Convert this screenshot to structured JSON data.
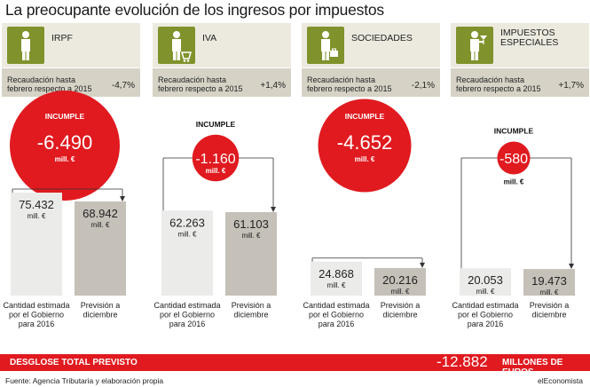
{
  "title": "La preocupante evolución de los ingresos por impuestos",
  "chart_data": {
    "type": "bar",
    "categories": [
      "Cantidad estimada por el Gobierno para 2016",
      "Previsión a diciembre"
    ],
    "value_unit": "mill. €",
    "deviation_label": "INCUMPLE",
    "subtitle": "Recaudación hasta febrero respecto a 2015",
    "panels": [
      {
        "name": "IRPF",
        "icon": "person-icon",
        "change_pct": "-4,7%",
        "estimated": 75432,
        "estimated_label": "75.432",
        "forecast": 68942,
        "forecast_label": "68.942",
        "deviation": -6490,
        "deviation_label": "-6.490"
      },
      {
        "name": "IVA",
        "icon": "shopping-cart-person-icon",
        "change_pct": "+1,4%",
        "estimated": 62263,
        "estimated_label": "62.263",
        "forecast": 61103,
        "forecast_label": "61.103",
        "deviation": -1160,
        "deviation_label": "-1.160"
      },
      {
        "name": "SOCIEDADES",
        "icon": "briefcase-person-icon",
        "change_pct": "-2,1%",
        "estimated": 24868,
        "estimated_label": "24.868",
        "forecast": 20216,
        "forecast_label": "20.216",
        "deviation": -4652,
        "deviation_label": "-4.652"
      },
      {
        "name": "IMPUESTOS ESPECIALES",
        "name_lines": [
          "IMPUESTOS",
          "ESPECIALES"
        ],
        "icon": "cocktail-person-icon",
        "change_pct": "+1,7%",
        "estimated": 20053,
        "estimated_label": "20.053",
        "forecast": 19473,
        "forecast_label": "19.473",
        "deviation": -580,
        "deviation_label": "-580"
      }
    ],
    "colors": {
      "estimated_bar": "#ebebea",
      "forecast_bar": "#c5c0b8",
      "deviation_circle": "#e01a1f",
      "header": "#eceadf",
      "subheader": "#d6d3c6",
      "icon_bg": "#7f922c"
    }
  },
  "subtitle_lines": [
    "Recaudación hasta",
    "febrero respecto a 2015"
  ],
  "bar_labels": {
    "estimated_lines": [
      "Cantidad estimada",
      "por el Gobierno",
      "para 2016"
    ],
    "forecast_lines": [
      "Previsión a",
      "diciembre"
    ]
  },
  "footer": {
    "label": "DESGLOSE TOTAL PREVISTO",
    "total": "-12.882",
    "unit": "MILLONES DE EUROS"
  },
  "source": "Fuente: Agencia Tributaria y elaboración propia",
  "brand": "elEconomista"
}
